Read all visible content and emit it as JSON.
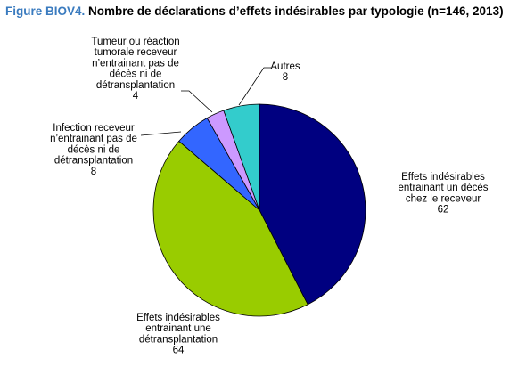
{
  "chart_data": {
    "type": "pie",
    "title_prefix": "Figure BIOV4.",
    "title": "Nombre de déclarations d’effets indésirables par typologie (n=146, 2013)",
    "slices": [
      {
        "label": [
          "Effets indésirables",
          "entrainant un décès",
          "chez le receveur"
        ],
        "value": 62,
        "value_label": "62",
        "color": "#000080"
      },
      {
        "label": [
          "Effets indésirables",
          "entrainant une",
          "détransplantation"
        ],
        "value": 64,
        "value_label": "64",
        "color": "#99cc00"
      },
      {
        "label": [
          "Infection receveur",
          "n’entrainant pas de",
          "décès ni de",
          "détransplantation"
        ],
        "value": 8,
        "value_label": "8",
        "color": "#3366ff"
      },
      {
        "label": [
          "Tumeur ou réaction",
          "tumorale receveur",
          "n’entrainant pas de",
          "décès ni de",
          "détransplantation"
        ],
        "value": 4,
        "value_label": "4",
        "color": "#cc99ff"
      },
      {
        "label": [
          "Autres"
        ],
        "value": 8,
        "value_label": "8",
        "color": "#33cccc"
      }
    ]
  }
}
